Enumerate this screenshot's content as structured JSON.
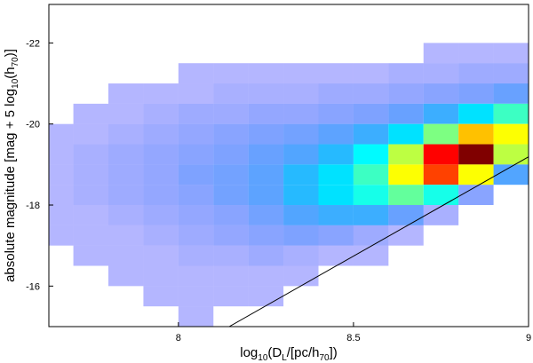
{
  "chart_data": {
    "type": "heatmap",
    "xlabel": [
      {
        "text": "log"
      },
      {
        "text": "10",
        "sub": true
      },
      {
        "text": "(D"
      },
      {
        "text": "L",
        "sub": true
      },
      {
        "text": "/[pc/h"
      },
      {
        "text": "70",
        "sub": true
      },
      {
        "text": "])"
      }
    ],
    "ylabel": [
      {
        "text": "absolute magnitude [mag + 5 log"
      },
      {
        "text": "10",
        "sub": true
      },
      {
        "text": "(h"
      },
      {
        "text": "70",
        "sub": true
      },
      {
        "text": ")]"
      }
    ],
    "xlim": [
      7.63,
      9.0
    ],
    "ylim": [
      -15,
      -22.95
    ],
    "xticks": [
      8,
      8.5,
      9
    ],
    "yticks": [
      -22,
      -20,
      -18,
      -16
    ],
    "xbins": [
      7.6,
      7.7,
      7.8,
      7.9,
      8.0,
      8.1,
      8.2,
      8.3,
      8.4,
      8.5,
      8.6,
      8.7,
      8.8,
      8.9,
      9.0
    ],
    "ybins": [
      -22.5,
      -22,
      -21.5,
      -21,
      -20.5,
      -20,
      -19.5,
      -19,
      -18.5,
      -18,
      -17.5,
      -17,
      -16.5,
      -16,
      -15.5,
      -15
    ],
    "counts": [
      [
        0,
        0,
        0,
        0,
        0,
        0,
        0,
        0,
        0,
        0,
        0,
        0,
        0,
        0
      ],
      [
        0,
        0,
        0,
        0,
        0,
        0,
        0,
        0,
        0,
        0,
        0,
        1,
        1,
        1
      ],
      [
        0,
        0,
        0,
        0,
        1,
        1,
        1,
        1,
        1,
        1,
        2,
        2,
        3,
        3
      ],
      [
        0,
        0,
        1,
        1,
        1,
        2,
        2,
        2,
        3,
        3,
        4,
        5,
        6,
        8
      ],
      [
        0,
        1,
        1,
        2,
        3,
        3,
        4,
        4,
        5,
        6,
        8,
        12,
        18,
        25
      ],
      [
        1,
        1,
        2,
        3,
        4,
        5,
        6,
        7,
        9,
        12,
        18,
        30,
        45,
        40
      ],
      [
        1,
        2,
        3,
        4,
        5,
        6,
        8,
        10,
        14,
        20,
        35,
        60,
        70,
        35
      ],
      [
        1,
        2,
        3,
        4,
        6,
        7,
        9,
        14,
        18,
        25,
        40,
        55,
        40,
        10
      ],
      [
        1,
        2,
        3,
        4,
        5,
        7,
        9,
        14,
        18,
        22,
        28,
        22,
        5,
        0
      ],
      [
        1,
        1,
        2,
        3,
        4,
        5,
        7,
        10,
        12,
        12,
        8,
        2,
        0,
        0
      ],
      [
        1,
        1,
        1,
        2,
        3,
        4,
        5,
        6,
        5,
        3,
        1,
        0,
        0,
        0
      ],
      [
        0,
        1,
        1,
        1,
        2,
        2,
        3,
        2,
        1,
        1,
        0,
        0,
        0,
        0
      ],
      [
        0,
        0,
        1,
        1,
        1,
        1,
        1,
        1,
        0,
        0,
        0,
        0,
        0,
        0
      ],
      [
        0,
        0,
        0,
        1,
        1,
        1,
        1,
        0,
        0,
        0,
        0,
        0,
        0,
        0
      ],
      [
        0,
        0,
        0,
        0,
        1,
        0,
        0,
        0,
        0,
        0,
        0,
        0,
        0,
        0
      ]
    ],
    "colormap": "jet",
    "limit_line": {
      "x": [
        8.145,
        9.0
      ],
      "y": [
        -15,
        -19.19
      ],
      "color": "#000000"
    }
  }
}
